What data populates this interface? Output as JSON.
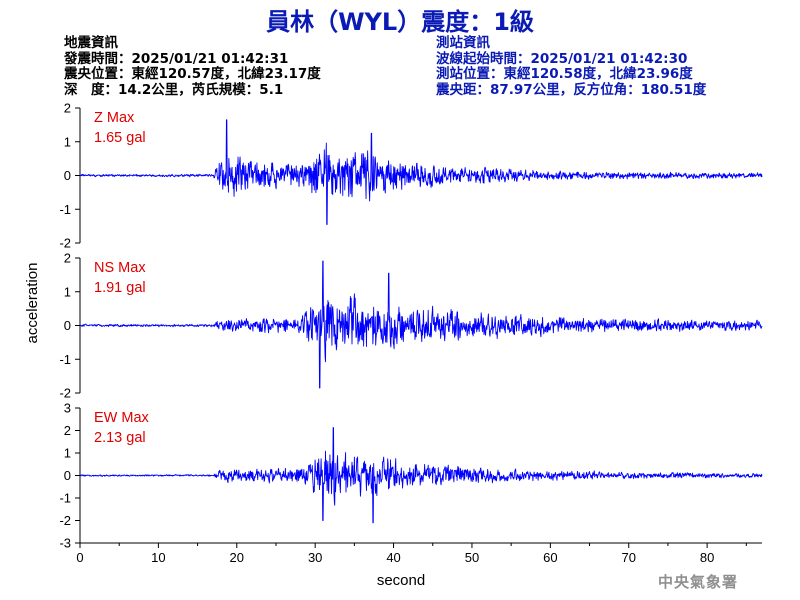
{
  "header": {
    "title": "員林（WYL）震度：1級"
  },
  "quake_info": {
    "heading": "地震資訊",
    "time": "發震時間：2025/01/21 01:42:31",
    "location": "震央位置：東經120.57度，北緯23.17度",
    "depth_magnitude": "深　度：14.2公里，芮氏規模：5.1"
  },
  "station_info": {
    "heading": "測站資訊",
    "wave_start": "波線起始時間：2025/01/21 01:42:30",
    "location": "測站位置：東經120.58度，北緯23.96度",
    "distance_azimuth": "震央距：87.97公里，反方位角：180.51度"
  },
  "colors": {
    "trace": "#0000ff",
    "max_label": "#e00000",
    "title": "#0a1ab4",
    "axis": "#000000"
  },
  "chart_data": {
    "type": "line",
    "xlabel": "second",
    "ylabel": "acceleration",
    "xlim": [
      0,
      87
    ],
    "xticks": [
      0,
      10,
      20,
      30,
      40,
      50,
      60,
      70,
      80
    ],
    "panels": [
      {
        "name": "Z",
        "max_title": "Z Max",
        "max_value": "1.65 gal",
        "ylim": [
          -2,
          2
        ],
        "yticks": [
          2,
          1,
          0,
          -1,
          -2
        ],
        "envelope": [
          {
            "t": 0,
            "amp": 0.05
          },
          {
            "t": 17,
            "amp": 0.05
          },
          {
            "t": 17.8,
            "amp": 0.6
          },
          {
            "t": 19,
            "amp": 1.0
          },
          {
            "t": 22,
            "amp": 0.6
          },
          {
            "t": 26,
            "amp": 0.45
          },
          {
            "t": 29,
            "amp": 0.6
          },
          {
            "t": 31,
            "amp": 1.2
          },
          {
            "t": 34,
            "amp": 1.05
          },
          {
            "t": 38,
            "amp": 0.9
          },
          {
            "t": 42,
            "amp": 0.55
          },
          {
            "t": 48,
            "amp": 0.4
          },
          {
            "t": 55,
            "amp": 0.25
          },
          {
            "t": 65,
            "amp": 0.15
          },
          {
            "t": 87,
            "amp": 0.1
          }
        ],
        "peaks": [
          {
            "t": 18.7,
            "v": 1.65
          },
          {
            "t": 37.2,
            "v": 1.25
          },
          {
            "t": 31.5,
            "v": -1.45
          }
        ]
      },
      {
        "name": "NS",
        "max_title": "NS Max",
        "max_value": "1.91 gal",
        "ylim": [
          -2,
          2
        ],
        "yticks": [
          2,
          1,
          0,
          -1,
          -2
        ],
        "envelope": [
          {
            "t": 0,
            "amp": 0.05
          },
          {
            "t": 17,
            "amp": 0.05
          },
          {
            "t": 17.8,
            "amp": 0.25
          },
          {
            "t": 22,
            "amp": 0.3
          },
          {
            "t": 28,
            "amp": 0.3
          },
          {
            "t": 30,
            "amp": 0.9
          },
          {
            "t": 32,
            "amp": 1.4
          },
          {
            "t": 35,
            "amp": 1.2
          },
          {
            "t": 40,
            "amp": 0.9
          },
          {
            "t": 45,
            "amp": 0.7
          },
          {
            "t": 52,
            "amp": 0.5
          },
          {
            "t": 60,
            "amp": 0.35
          },
          {
            "t": 70,
            "amp": 0.25
          },
          {
            "t": 87,
            "amp": 0.18
          }
        ],
        "peaks": [
          {
            "t": 31.0,
            "v": 1.91
          },
          {
            "t": 30.6,
            "v": -1.85
          },
          {
            "t": 39.4,
            "v": 1.55
          }
        ]
      },
      {
        "name": "EW",
        "max_title": "EW Max",
        "max_value": "2.13 gal",
        "ylim": [
          -3,
          3
        ],
        "yticks": [
          3,
          2,
          1,
          0,
          -1,
          -2,
          -3
        ],
        "envelope": [
          {
            "t": 0,
            "amp": 0.05
          },
          {
            "t": 17,
            "amp": 0.05
          },
          {
            "t": 17.8,
            "amp": 0.35
          },
          {
            "t": 22,
            "amp": 0.4
          },
          {
            "t": 28,
            "amp": 0.45
          },
          {
            "t": 30,
            "amp": 1.2
          },
          {
            "t": 32,
            "amp": 1.6
          },
          {
            "t": 36,
            "amp": 1.4
          },
          {
            "t": 40,
            "amp": 1.0
          },
          {
            "t": 46,
            "amp": 0.6
          },
          {
            "t": 55,
            "amp": 0.35
          },
          {
            "t": 70,
            "amp": 0.2
          },
          {
            "t": 87,
            "amp": 0.12
          }
        ],
        "peaks": [
          {
            "t": 32.3,
            "v": 2.13
          },
          {
            "t": 37.4,
            "v": -2.1
          },
          {
            "t": 31.0,
            "v": -2.0
          }
        ]
      }
    ]
  },
  "footer": {
    "agency": "中央氣象署"
  }
}
